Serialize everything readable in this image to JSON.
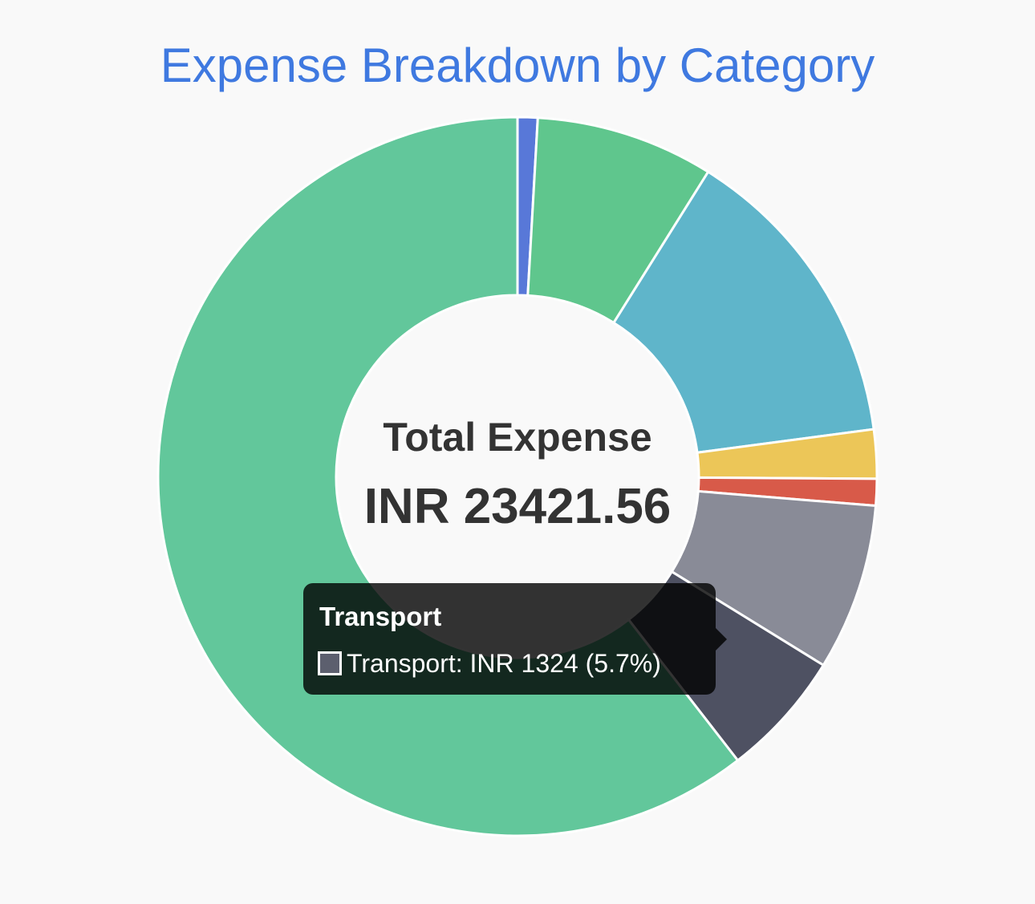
{
  "chart_data": {
    "type": "pie",
    "title": "Expense Breakdown by Category",
    "center_label": "Total Expense",
    "center_value": "INR 23421.56",
    "categories": [
      "",
      "",
      "",
      "",
      "",
      "",
      "Transport",
      ""
    ],
    "values": [
      0.9,
      8.0,
      14.0,
      2.2,
      1.2,
      7.5,
      5.7,
      60.5
    ],
    "colors": [
      "#5878d8",
      "#5fc68d",
      "#5fb5ca",
      "#ecc658",
      "#d85a49",
      "#898b97",
      "#4e5162",
      "#62c79b"
    ],
    "tooltip": {
      "title": "Transport",
      "text": "Transport: INR 1324 (5.7%)",
      "swatch_color": "#5c5f6e"
    }
  }
}
